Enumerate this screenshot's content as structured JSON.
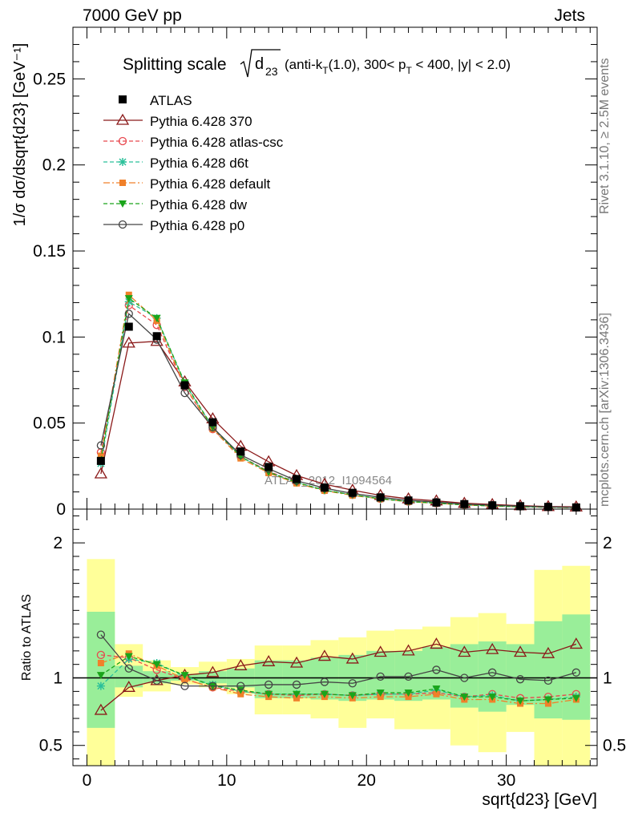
{
  "header": {
    "left": "7000 GeV pp",
    "right": "Jets"
  },
  "side_labels": {
    "rivet": "Rivet 3.1.10, ≥ 2.5M events",
    "mcplots": "mcplots.cern.ch [arXiv:1306.3436]"
  },
  "chart_data": [
    {
      "panel": "main",
      "type": "scatter",
      "title": "Splitting scale √d₂₃ (anti-kT(1.0), 300< pT < 400, |y| < 2.0)",
      "title_parts": {
        "main": "Splitting scale",
        "sqrt_arg": "d",
        "sqrt_sub": "23",
        "rest1": "(anti-k",
        "sub_t": "T",
        "rest2": "(1.0), 300< p",
        "sub_t2": "T",
        "rest3": " < 400, |y| < 2.0)"
      },
      "ylabel": "1/σ dσ/dsqrt{d23} [GeV⁻¹]",
      "ylim": [
        0,
        0.28
      ],
      "xlim": [
        -1,
        36.5
      ],
      "yticks": [
        "0",
        "0.05",
        "0.1",
        "0.15",
        "0.2",
        "0.25"
      ],
      "watermark": "ATLAS_2012_I1094564",
      "legend_placement": "top-left",
      "x": [
        1,
        3,
        5,
        7,
        9,
        11,
        13,
        15,
        17,
        19,
        21,
        23,
        25,
        27,
        29,
        31,
        33,
        35
      ],
      "series": [
        {
          "name": "ATLAS",
          "color": "#000000",
          "marker": "filled-square",
          "line": "none",
          "values": [
            0.028,
            0.106,
            0.1005,
            0.072,
            0.0505,
            0.0335,
            0.0245,
            0.0175,
            0.0125,
            0.0095,
            0.0068,
            0.005,
            0.0038,
            0.0029,
            0.0022,
            0.0017,
            0.0013,
            0.001
          ]
        },
        {
          "name": "Pythia 6.428 370",
          "color": "#8b1a1a",
          "marker": "open-triangle",
          "line": "solid",
          "values": [
            0.0205,
            0.0965,
            0.0975,
            0.074,
            0.0525,
            0.0365,
            0.0275,
            0.0195,
            0.0145,
            0.011,
            0.008,
            0.006,
            0.0048,
            0.0034,
            0.0027,
            0.002,
            0.0015,
            0.0013
          ]
        },
        {
          "name": "Pythia 6.428 atlas-csc",
          "color": "#e8474e",
          "marker": "open-circle",
          "line": "dashed",
          "values": [
            0.033,
            0.1185,
            0.107,
            0.071,
            0.0465,
            0.0305,
            0.022,
            0.0155,
            0.011,
            0.0083,
            0.006,
            0.0044,
            0.0034,
            0.0025,
            0.0019,
            0.0015,
            0.0011,
            0.0009
          ]
        },
        {
          "name": "Pythia 6.428 d6t",
          "color": "#2bc09a",
          "marker": "asterisk",
          "line": "dashed",
          "values": [
            0.0265,
            0.1205,
            0.111,
            0.073,
            0.0475,
            0.0305,
            0.0215,
            0.0155,
            0.011,
            0.0083,
            0.006,
            0.0044,
            0.0035,
            0.0025,
            0.0018,
            0.0014,
            0.0011,
            0.0009
          ]
        },
        {
          "name": "Pythia 6.428 default",
          "color": "#f0802a",
          "marker": "filled-square-small",
          "line": "dashdot",
          "values": [
            0.031,
            0.1245,
            0.1095,
            0.0715,
            0.0465,
            0.0295,
            0.021,
            0.015,
            0.0107,
            0.008,
            0.0059,
            0.0043,
            0.0034,
            0.0024,
            0.0018,
            0.0014,
            0.0011,
            0.0008
          ]
        },
        {
          "name": "Pythia 6.428 dw",
          "color": "#1aa51a",
          "marker": "filled-triangle-down",
          "line": "dashed",
          "values": [
            0.0285,
            0.1225,
            0.111,
            0.0735,
            0.0475,
            0.0305,
            0.0215,
            0.0155,
            0.011,
            0.0083,
            0.006,
            0.0044,
            0.0035,
            0.0025,
            0.0019,
            0.0014,
            0.0011,
            0.0009
          ]
        },
        {
          "name": "Pythia 6.428 p0",
          "color": "#444444",
          "marker": "open-circle",
          "line": "solid",
          "values": [
            0.037,
            0.1135,
            0.0985,
            0.0675,
            0.0475,
            0.0315,
            0.0235,
            0.0165,
            0.0122,
            0.0091,
            0.0069,
            0.0051,
            0.0041,
            0.0029,
            0.0023,
            0.0017,
            0.0013,
            0.001
          ]
        }
      ]
    },
    {
      "panel": "ratio",
      "type": "line",
      "ylabel": "Ratio to ATLAS",
      "ylim": [
        0.35,
        2.25
      ],
      "xlim": [
        -1,
        36.5
      ],
      "yticks": [
        "0.5",
        "1",
        "2"
      ],
      "xticks": [
        "0",
        "10",
        "20",
        "30"
      ],
      "xlabel": "sqrt{d23} [GeV]",
      "x": [
        1,
        3,
        5,
        7,
        9,
        11,
        13,
        15,
        17,
        19,
        21,
        23,
        25,
        27,
        29,
        31,
        33,
        35
      ],
      "band_edges": [
        0,
        2,
        4,
        6,
        8,
        10,
        12,
        14,
        16,
        18,
        20,
        22,
        24,
        26,
        28,
        30,
        32,
        34,
        36
      ],
      "yellow_band": [
        [
          0.35,
          1.88
        ],
        [
          0.86,
          1.25
        ],
        [
          0.9,
          1.13
        ],
        [
          0.95,
          1.08
        ],
        [
          0.93,
          1.12
        ],
        [
          0.88,
          1.14
        ],
        [
          0.73,
          1.24
        ],
        [
          0.73,
          1.24
        ],
        [
          0.7,
          1.28
        ],
        [
          0.63,
          1.3
        ],
        [
          0.7,
          1.35
        ],
        [
          0.62,
          1.36
        ],
        [
          0.62,
          1.38
        ],
        [
          0.5,
          1.45
        ],
        [
          0.45,
          1.48
        ],
        [
          0.6,
          1.4
        ],
        [
          0.35,
          1.8
        ],
        [
          0.35,
          1.83
        ]
      ],
      "green_band": [
        [
          0.63,
          1.49
        ],
        [
          0.93,
          1.09
        ],
        [
          0.96,
          1.05
        ],
        [
          0.98,
          1.03
        ],
        [
          0.96,
          1.05
        ],
        [
          0.93,
          1.07
        ],
        [
          0.85,
          1.13
        ],
        [
          0.85,
          1.13
        ],
        [
          0.84,
          1.15
        ],
        [
          0.83,
          1.17
        ],
        [
          0.84,
          1.2
        ],
        [
          0.83,
          1.2
        ],
        [
          0.84,
          1.23
        ],
        [
          0.78,
          1.25
        ],
        [
          0.75,
          1.27
        ],
        [
          0.8,
          1.25
        ],
        [
          0.7,
          1.42
        ],
        [
          0.69,
          1.47
        ]
      ],
      "series": [
        {
          "name": "Pythia 6.428 370",
          "color": "#8b1a1a",
          "values": [
            0.76,
            0.93,
            0.98,
            1.02,
            1.04,
            1.09,
            1.12,
            1.11,
            1.16,
            1.14,
            1.19,
            1.2,
            1.25,
            1.19,
            1.21,
            1.19,
            1.18,
            1.25
          ]
        },
        {
          "name": "Pythia 6.428 atlas-csc",
          "color": "#e8474e",
          "values": [
            1.17,
            1.15,
            1.06,
            0.99,
            0.93,
            0.9,
            0.88,
            0.87,
            0.88,
            0.87,
            0.88,
            0.88,
            0.89,
            0.86,
            0.88,
            0.85,
            0.86,
            0.88
          ]
        },
        {
          "name": "Pythia 6.428 d6t",
          "color": "#2bc09a",
          "values": [
            0.94,
            1.14,
            1.11,
            1.01,
            0.95,
            0.9,
            0.88,
            0.88,
            0.88,
            0.87,
            0.88,
            0.88,
            0.91,
            0.86,
            0.87,
            0.83,
            0.84,
            0.86
          ]
        },
        {
          "name": "Pythia 6.428 default",
          "color": "#f0802a",
          "values": [
            1.11,
            1.18,
            1.09,
            0.99,
            0.93,
            0.88,
            0.86,
            0.85,
            0.86,
            0.85,
            0.86,
            0.86,
            0.88,
            0.84,
            0.84,
            0.81,
            0.81,
            0.84
          ]
        },
        {
          "name": "Pythia 6.428 dw",
          "color": "#1aa51a",
          "values": [
            1.02,
            1.16,
            1.1,
            1.02,
            0.94,
            0.91,
            0.88,
            0.88,
            0.88,
            0.87,
            0.89,
            0.89,
            0.92,
            0.86,
            0.86,
            0.83,
            0.84,
            0.85
          ]
        },
        {
          "name": "Pythia 6.428 p0",
          "color": "#444444",
          "values": [
            1.32,
            1.07,
            0.98,
            0.94,
            0.94,
            0.94,
            0.95,
            0.95,
            0.97,
            0.96,
            1.01,
            1.01,
            1.06,
            1.0,
            1.04,
            0.99,
            0.98,
            1.04
          ]
        }
      ]
    }
  ]
}
